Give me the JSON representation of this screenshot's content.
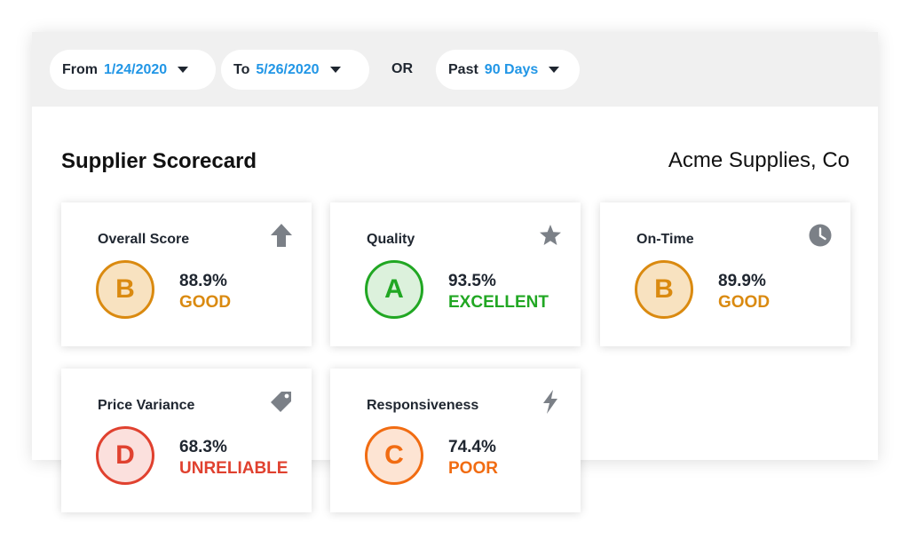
{
  "filters": {
    "from": {
      "label": "From",
      "value": "1/24/2020"
    },
    "to": {
      "label": "To",
      "value": "5/26/2020"
    },
    "or_label": "OR",
    "past": {
      "label": "Past",
      "value": "90 Days"
    }
  },
  "header": {
    "title": "Supplier Scorecard",
    "company": "Acme Supplies, Co"
  },
  "cards": [
    {
      "title": "Overall Score",
      "icon": "arrow-up-icon",
      "grade": "B",
      "percent": "88.9%",
      "rating": "GOOD",
      "color": "#da8a10"
    },
    {
      "title": "Quality",
      "icon": "star-icon",
      "grade": "A",
      "percent": "93.5%",
      "rating": "EXCELLENT",
      "color": "#21a723"
    },
    {
      "title": "On-Time",
      "icon": "clock-icon",
      "grade": "B",
      "percent": "89.9%",
      "rating": "GOOD",
      "color": "#da8a10"
    },
    {
      "title": "Price Variance",
      "icon": "tag-icon",
      "grade": "D",
      "percent": "68.3%",
      "rating": "UNRELIABLE",
      "color": "#e0412f"
    },
    {
      "title": "Responsiveness",
      "icon": "lightning-icon",
      "grade": "C",
      "percent": "74.4%",
      "rating": "POOR",
      "color": "#f16c12"
    }
  ]
}
